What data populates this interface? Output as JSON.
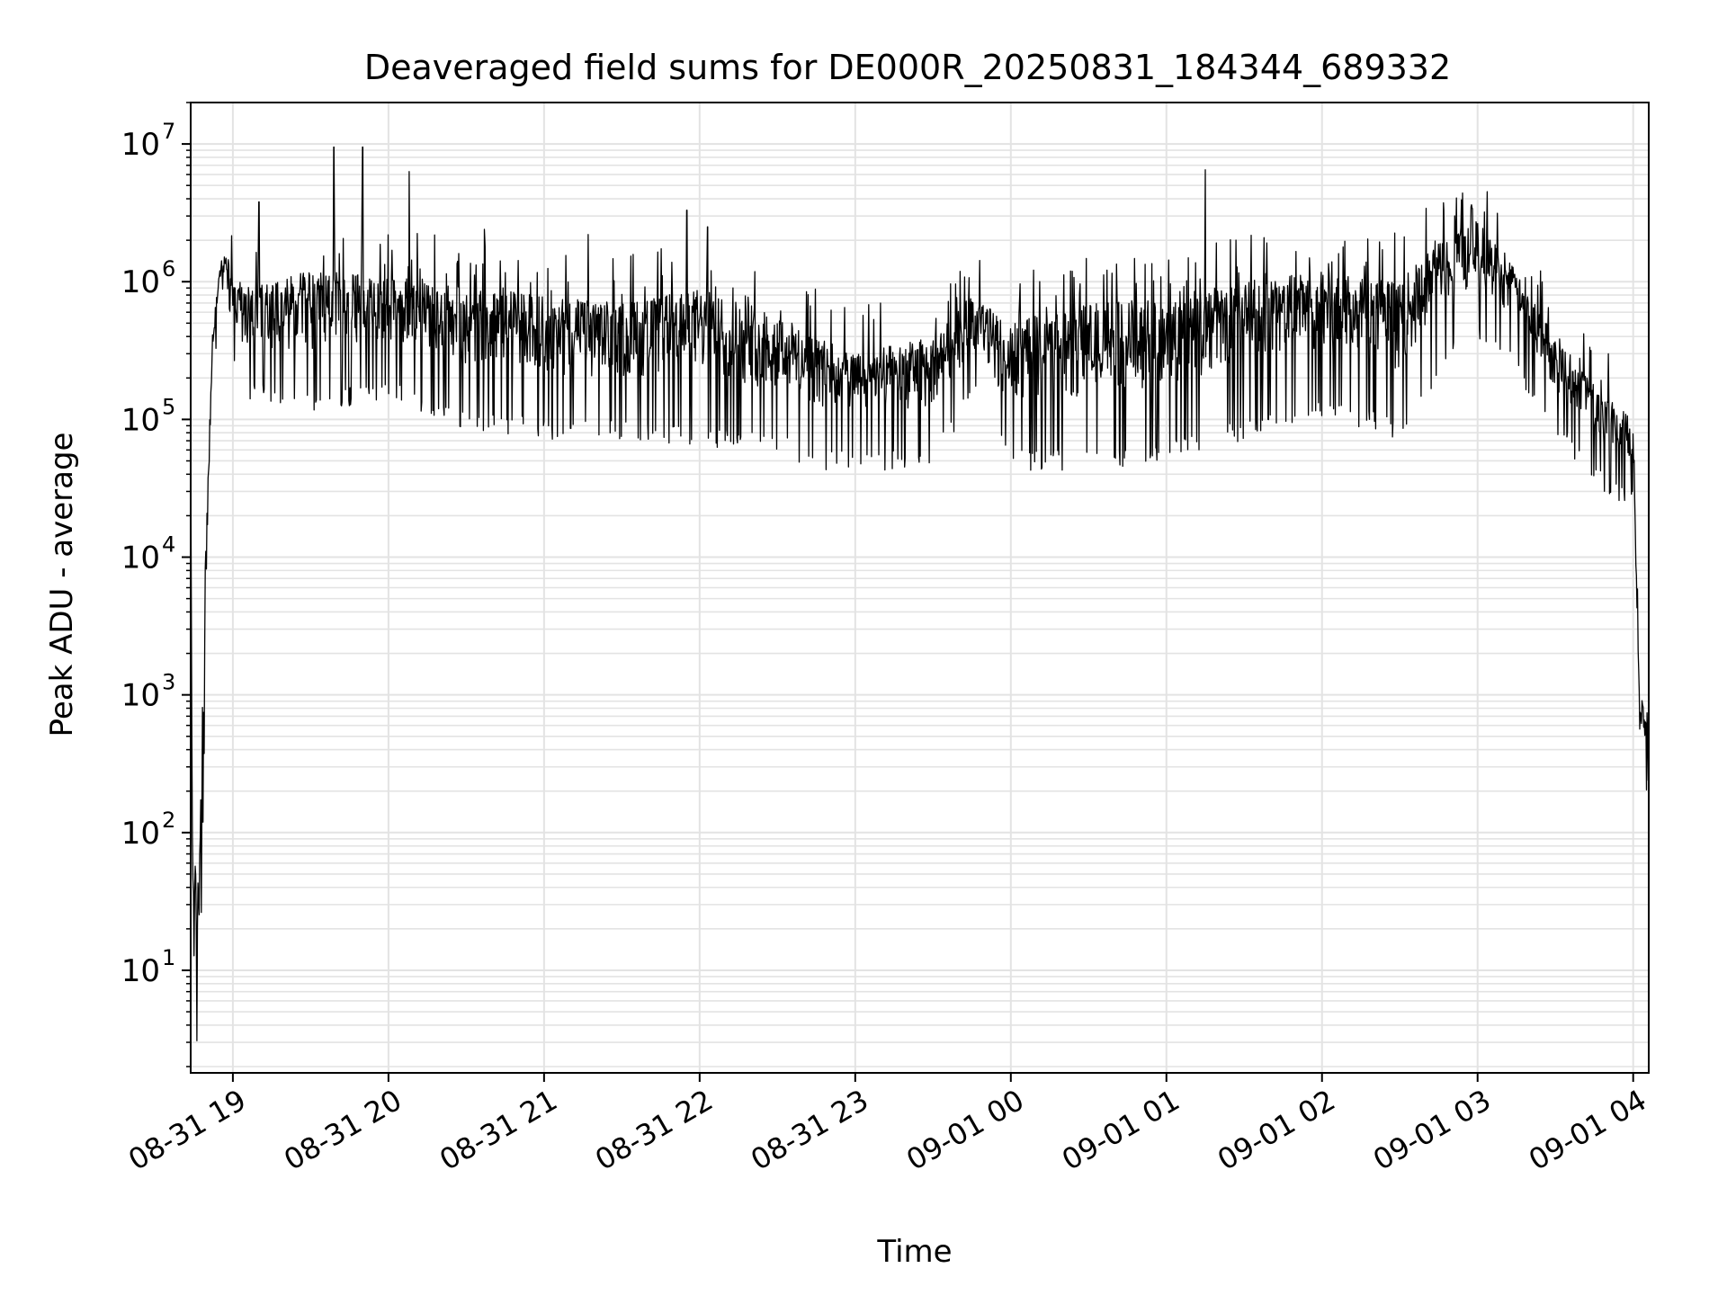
{
  "chart_data": {
    "type": "line",
    "title": "Deaveraged field sums for DE000R_20250831_184344_689332",
    "xlabel": "Time",
    "ylabel": "Peak ADU - average",
    "yscale": "log",
    "grid": true,
    "legend": "none",
    "line_color": "#000000",
    "xlim": [
      "2025-08-31 18:43:44",
      "2025-09-01 04:06:00"
    ],
    "ylim": [
      1.8,
      20000000
    ],
    "x_ticks": [
      {
        "t": "2025-08-31 19:00",
        "label": "08-31 19"
      },
      {
        "t": "2025-08-31 20:00",
        "label": "08-31 20"
      },
      {
        "t": "2025-08-31 21:00",
        "label": "08-31 21"
      },
      {
        "t": "2025-08-31 22:00",
        "label": "08-31 22"
      },
      {
        "t": "2025-08-31 23:00",
        "label": "08-31 23"
      },
      {
        "t": "2025-09-01 00:00",
        "label": "09-01 00"
      },
      {
        "t": "2025-09-01 01:00",
        "label": "09-01 01"
      },
      {
        "t": "2025-09-01 02:00",
        "label": "09-01 02"
      },
      {
        "t": "2025-09-01 03:00",
        "label": "09-01 03"
      },
      {
        "t": "2025-09-01 04:00",
        "label": "09-01 04"
      }
    ],
    "y_ticks": [
      {
        "v": 10,
        "base": "10",
        "exp": "1"
      },
      {
        "v": 100,
        "base": "10",
        "exp": "2"
      },
      {
        "v": 1000,
        "base": "10",
        "exp": "3"
      },
      {
        "v": 10000,
        "base": "10",
        "exp": "4"
      },
      {
        "v": 100000,
        "base": "10",
        "exp": "5"
      },
      {
        "v": 1000000,
        "base": "10",
        "exp": "6"
      },
      {
        "v": 10000000,
        "base": "10",
        "exp": "7"
      }
    ],
    "series": [
      {
        "envelope": [
          {
            "t": "2025-08-31 18:43:44",
            "low": 20000,
            "high": 110000
          },
          {
            "t": "2025-08-31 18:44:30",
            "low": 4,
            "high": 60
          },
          {
            "t": "2025-08-31 18:47:00",
            "low": 4,
            "high": 60
          },
          {
            "t": "2025-08-31 18:49:00",
            "low": 500,
            "high": 5000
          },
          {
            "t": "2025-08-31 18:52:00",
            "low": 200000,
            "high": 400000
          },
          {
            "t": "2025-08-31 18:55:00",
            "low": 900000,
            "high": 1400000
          },
          {
            "t": "2025-08-31 18:58:00",
            "low": 900000,
            "high": 1600000
          },
          {
            "t": "2025-08-31 19:02:00",
            "low": 200000,
            "high": 900000
          },
          {
            "t": "2025-08-31 19:30:00",
            "low": 150000,
            "high": 1200000
          },
          {
            "t": "2025-08-31 20:00:00",
            "low": 200000,
            "high": 1100000
          },
          {
            "t": "2025-08-31 20:30:00",
            "low": 120000,
            "high": 900000
          },
          {
            "t": "2025-08-31 21:00:00",
            "low": 100000,
            "high": 800000
          },
          {
            "t": "2025-08-31 21:30:00",
            "low": 100000,
            "high": 700000
          },
          {
            "t": "2025-08-31 22:00:00",
            "low": 90000,
            "high": 900000
          },
          {
            "t": "2025-08-31 22:30:00",
            "low": 80000,
            "high": 600000
          },
          {
            "t": "2025-08-31 22:45:00",
            "low": 60000,
            "high": 400000
          },
          {
            "t": "2025-08-31 23:00:00",
            "low": 60000,
            "high": 300000
          },
          {
            "t": "2025-08-31 23:30:00",
            "low": 60000,
            "high": 400000
          },
          {
            "t": "2025-08-31 23:45:00",
            "low": 200000,
            "high": 800000
          },
          {
            "t": "2025-09-01 00:00:00",
            "low": 60000,
            "high": 500000
          },
          {
            "t": "2025-09-01 00:30:00",
            "low": 60000,
            "high": 700000
          },
          {
            "t": "2025-09-01 01:00:00",
            "low": 70000,
            "high": 800000
          },
          {
            "t": "2025-09-01 01:30:00",
            "low": 100000,
            "high": 1000000
          },
          {
            "t": "2025-09-01 02:00:00",
            "low": 150000,
            "high": 1200000
          },
          {
            "t": "2025-09-01 02:30:00",
            "low": 100000,
            "high": 1000000
          },
          {
            "t": "2025-09-01 02:50:00",
            "low": 400000,
            "high": 2500000
          },
          {
            "t": "2025-09-01 03:00:00",
            "low": 500000,
            "high": 2800000
          },
          {
            "t": "2025-09-01 03:15:00",
            "low": 300000,
            "high": 1200000
          },
          {
            "t": "2025-09-01 03:30:00",
            "low": 100000,
            "high": 400000
          },
          {
            "t": "2025-09-01 03:50:00",
            "low": 40000,
            "high": 150000
          },
          {
            "t": "2025-09-01 04:00:00",
            "low": 30000,
            "high": 120000
          },
          {
            "t": "2025-09-01 04:01:00",
            "low": 5000,
            "high": 20000
          },
          {
            "t": "2025-09-01 04:02:30",
            "low": 300,
            "high": 1000
          },
          {
            "t": "2025-09-01 04:06:00",
            "low": 250,
            "high": 700
          }
        ],
        "spikes": [
          {
            "t": "2025-08-31 19:10:00",
            "v": 3800000
          },
          {
            "t": "2025-08-31 19:39:00",
            "v": 9500000
          },
          {
            "t": "2025-08-31 19:50:00",
            "v": 9500000
          },
          {
            "t": "2025-08-31 20:08:00",
            "v": 6300000
          },
          {
            "t": "2025-08-31 20:37:00",
            "v": 2400000
          },
          {
            "t": "2025-08-31 21:17:00",
            "v": 2200000
          },
          {
            "t": "2025-08-31 21:55:00",
            "v": 3300000
          },
          {
            "t": "2025-08-31 22:03:00",
            "v": 2500000
          },
          {
            "t": "2025-09-01 01:15:00",
            "v": 6500000
          },
          {
            "t": "2025-09-01 02:47:00",
            "v": 3300000
          },
          {
            "t": "2025-09-01 02:58:00",
            "v": 3400000
          }
        ]
      }
    ]
  }
}
